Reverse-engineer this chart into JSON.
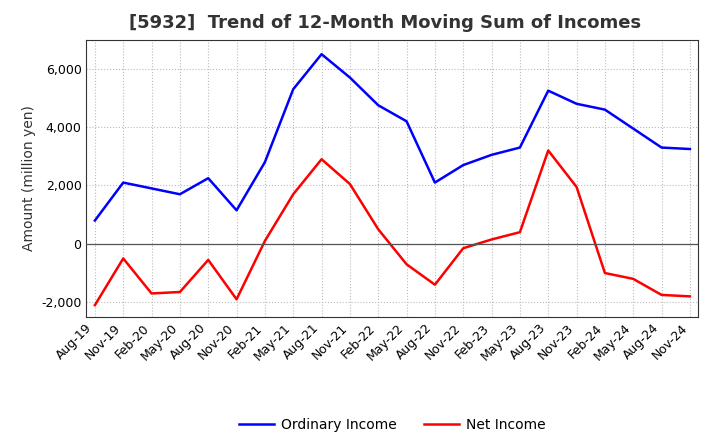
{
  "title": "[5932]  Trend of 12-Month Moving Sum of Incomes",
  "ylabel": "Amount (million yen)",
  "x_labels": [
    "Aug-19",
    "Nov-19",
    "Feb-20",
    "May-20",
    "Aug-20",
    "Nov-20",
    "Feb-21",
    "May-21",
    "Aug-21",
    "Nov-21",
    "Feb-22",
    "May-22",
    "Aug-22",
    "Nov-22",
    "Feb-23",
    "May-23",
    "Aug-23",
    "Nov-23",
    "Feb-24",
    "May-24",
    "Aug-24",
    "Nov-24"
  ],
  "ordinary_income": [
    800,
    2100,
    1900,
    1700,
    2250,
    1150,
    2800,
    5300,
    6500,
    5700,
    4750,
    4200,
    2100,
    2700,
    3050,
    3300,
    5250,
    4800,
    4600,
    3950,
    3300,
    3250
  ],
  "net_income": [
    -2100,
    -500,
    -1700,
    -1650,
    -550,
    -1900,
    100,
    1700,
    2900,
    2050,
    500,
    -700,
    -1400,
    -150,
    150,
    400,
    3200,
    1950,
    -1000,
    -1200,
    -1750,
    -1800
  ],
  "ordinary_color": "#0000ff",
  "net_color": "#ff0000",
  "background_color": "#ffffff",
  "grid_color": "#bbbbbb",
  "ylim": [
    -2500,
    7000
  ],
  "yticks": [
    -2000,
    0,
    2000,
    4000,
    6000
  ],
  "legend_labels": [
    "Ordinary Income",
    "Net Income"
  ],
  "title_fontsize": 13,
  "title_color": "#333333",
  "axis_fontsize": 10,
  "tick_fontsize": 9
}
